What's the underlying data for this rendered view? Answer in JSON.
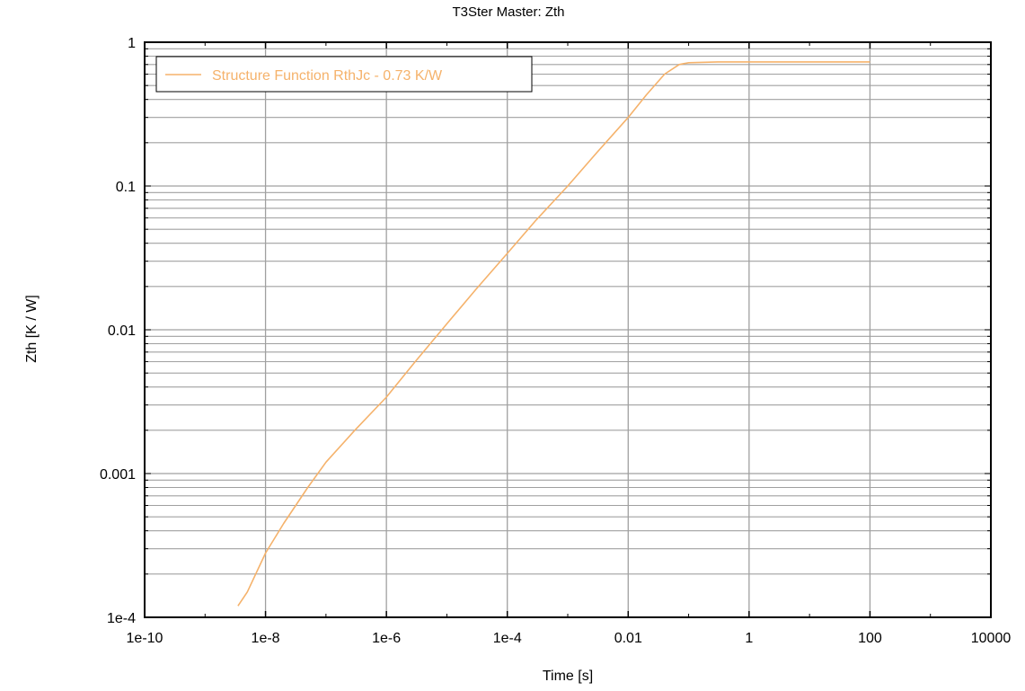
{
  "chart_data": {
    "type": "line",
    "title": "T3Ster Master: Zth",
    "xlabel": "Time [s]",
    "ylabel": "Zth [K / W]",
    "x_scale": "log",
    "y_scale": "log",
    "xlim": [
      1e-10,
      10000
    ],
    "ylim": [
      0.0001,
      1
    ],
    "x_ticks": [
      1e-10,
      1e-08,
      1e-06,
      0.0001,
      0.01,
      1,
      100,
      10000
    ],
    "x_tick_labels": [
      "1e-10",
      "1e-8",
      "1e-6",
      "1e-4",
      "0.01",
      "1",
      "100",
      "10000"
    ],
    "y_ticks": [
      0.0001,
      0.001,
      0.01,
      0.1,
      1
    ],
    "y_tick_labels": [
      "1e-4",
      "0.001",
      "0.01",
      "0.1",
      "1"
    ],
    "grid": true,
    "legend_position": "top-left",
    "series": [
      {
        "name": "Structure Function RthJc - 0.73 K/W",
        "color": "#f5b26b",
        "x": [
          3.5e-09,
          5e-09,
          1e-08,
          2e-08,
          5e-08,
          1e-07,
          3e-07,
          1e-06,
          3e-06,
          1e-05,
          3e-05,
          0.0001,
          0.0003,
          0.001,
          0.003,
          0.01,
          0.02,
          0.04,
          0.07,
          0.1,
          0.3,
          1,
          10,
          100
        ],
        "y": [
          0.00012,
          0.00015,
          0.00028,
          0.00045,
          0.0008,
          0.0012,
          0.002,
          0.0034,
          0.006,
          0.011,
          0.019,
          0.034,
          0.058,
          0.1,
          0.17,
          0.3,
          0.43,
          0.6,
          0.7,
          0.72,
          0.73,
          0.73,
          0.73,
          0.73
        ]
      }
    ]
  }
}
